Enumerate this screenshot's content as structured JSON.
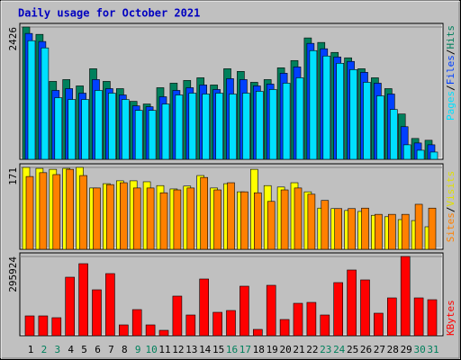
{
  "chart_data": [
    {
      "type": "bar",
      "title": "Daily usage for October 2021",
      "categories": [
        "1",
        "2",
        "3",
        "4",
        "5",
        "6",
        "7",
        "8",
        "9",
        "10",
        "11",
        "12",
        "13",
        "14",
        "15",
        "16",
        "17",
        "18",
        "19",
        "20",
        "21",
        "22",
        "23",
        "24",
        "25",
        "26",
        "27",
        "28",
        "29",
        "30",
        "31"
      ],
      "label_colors": [
        "#000000",
        "#00805c",
        "#00805c",
        "#000000",
        "#000000",
        "#000000",
        "#000000",
        "#000000",
        "#00805c",
        "#00805c",
        "#000000",
        "#000000",
        "#000000",
        "#000000",
        "#000000",
        "#00805c",
        "#00805c",
        "#000000",
        "#000000",
        "#000000",
        "#000000",
        "#000000",
        "#00805c",
        "#00805c",
        "#000000",
        "#000000",
        "#000000",
        "#000000",
        "#000000",
        "#00805c",
        "#00805c"
      ],
      "ylim": [
        0,
        2426
      ],
      "yticks": [
        2426
      ],
      "legend_separator": "/",
      "series": [
        {
          "name": "Pages",
          "color": "#00e0ff",
          "values": [
            2175,
            2043,
            1130,
            1097,
            1097,
            1263,
            1213,
            1097,
            897,
            897,
            1014,
            1180,
            1213,
            1197,
            1213,
            1197,
            1213,
            1247,
            1280,
            1396,
            1495,
            1993,
            1894,
            1761,
            1645,
            1412,
            1164,
            914,
            266,
            166,
            133
          ]
        },
        {
          "name": "Files",
          "color": "#0040ff",
          "values": [
            2308,
            2160,
            1263,
            1296,
            1213,
            1462,
            1296,
            1180,
            980,
            964,
            1147,
            1263,
            1313,
            1363,
            1280,
            1479,
            1462,
            1346,
            1379,
            1578,
            1694,
            2126,
            2027,
            1877,
            1795,
            1595,
            1396,
            1197,
            598,
            299,
            266
          ]
        },
        {
          "name": "Hits",
          "color": "#00805c",
          "values": [
            2426,
            2291,
            1429,
            1462,
            1346,
            1661,
            1429,
            1296,
            1063,
            1014,
            1313,
            1396,
            1446,
            1495,
            1363,
            1661,
            1612,
            1412,
            1462,
            1678,
            1811,
            2226,
            2143,
            1960,
            1861,
            1661,
            1495,
            1296,
            831,
            382,
            349
          ]
        }
      ]
    },
    {
      "type": "bar",
      "ylim": [
        0,
        171
      ],
      "yticks": [
        171
      ],
      "legend_separator": "/",
      "series": [
        {
          "name": "Sites",
          "color": "#ff8000",
          "values": [
            152,
            160,
            156,
            167,
            154,
            128,
            135,
            139,
            128,
            128,
            118,
            124,
            128,
            150,
            124,
            139,
            120,
            118,
            100,
            124,
            128,
            115,
            102,
            85,
            85,
            86,
            73,
            73,
            73,
            94,
            86
          ]
        },
        {
          "name": "Visits",
          "color": "#ffff00",
          "values": [
            171,
            169,
            167,
            169,
            171,
            128,
            137,
            143,
            143,
            141,
            133,
            126,
            132,
            154,
            128,
            137,
            120,
            167,
            133,
            130,
            139,
            120,
            86,
            85,
            81,
            79,
            71,
            68,
            62,
            60,
            47
          ]
        }
      ]
    },
    {
      "type": "bar",
      "ylim": [
        0,
        295924
      ],
      "yticks": [
        295924
      ],
      "series": [
        {
          "name": "KBytes",
          "color": "#ff0000",
          "values": [
            73986,
            73986,
            67260,
            218595,
            269040,
            171513,
            232047,
            40356,
            97527,
            40356,
            20178,
            147972,
            77349,
            211869,
            87438,
            94164,
            184965,
            23541,
            188328,
            60534,
            121068,
            124431,
            77349,
            198417,
            245499,
            208506,
            84075,
            141246,
            295924,
            141246,
            134520
          ]
        }
      ]
    }
  ]
}
